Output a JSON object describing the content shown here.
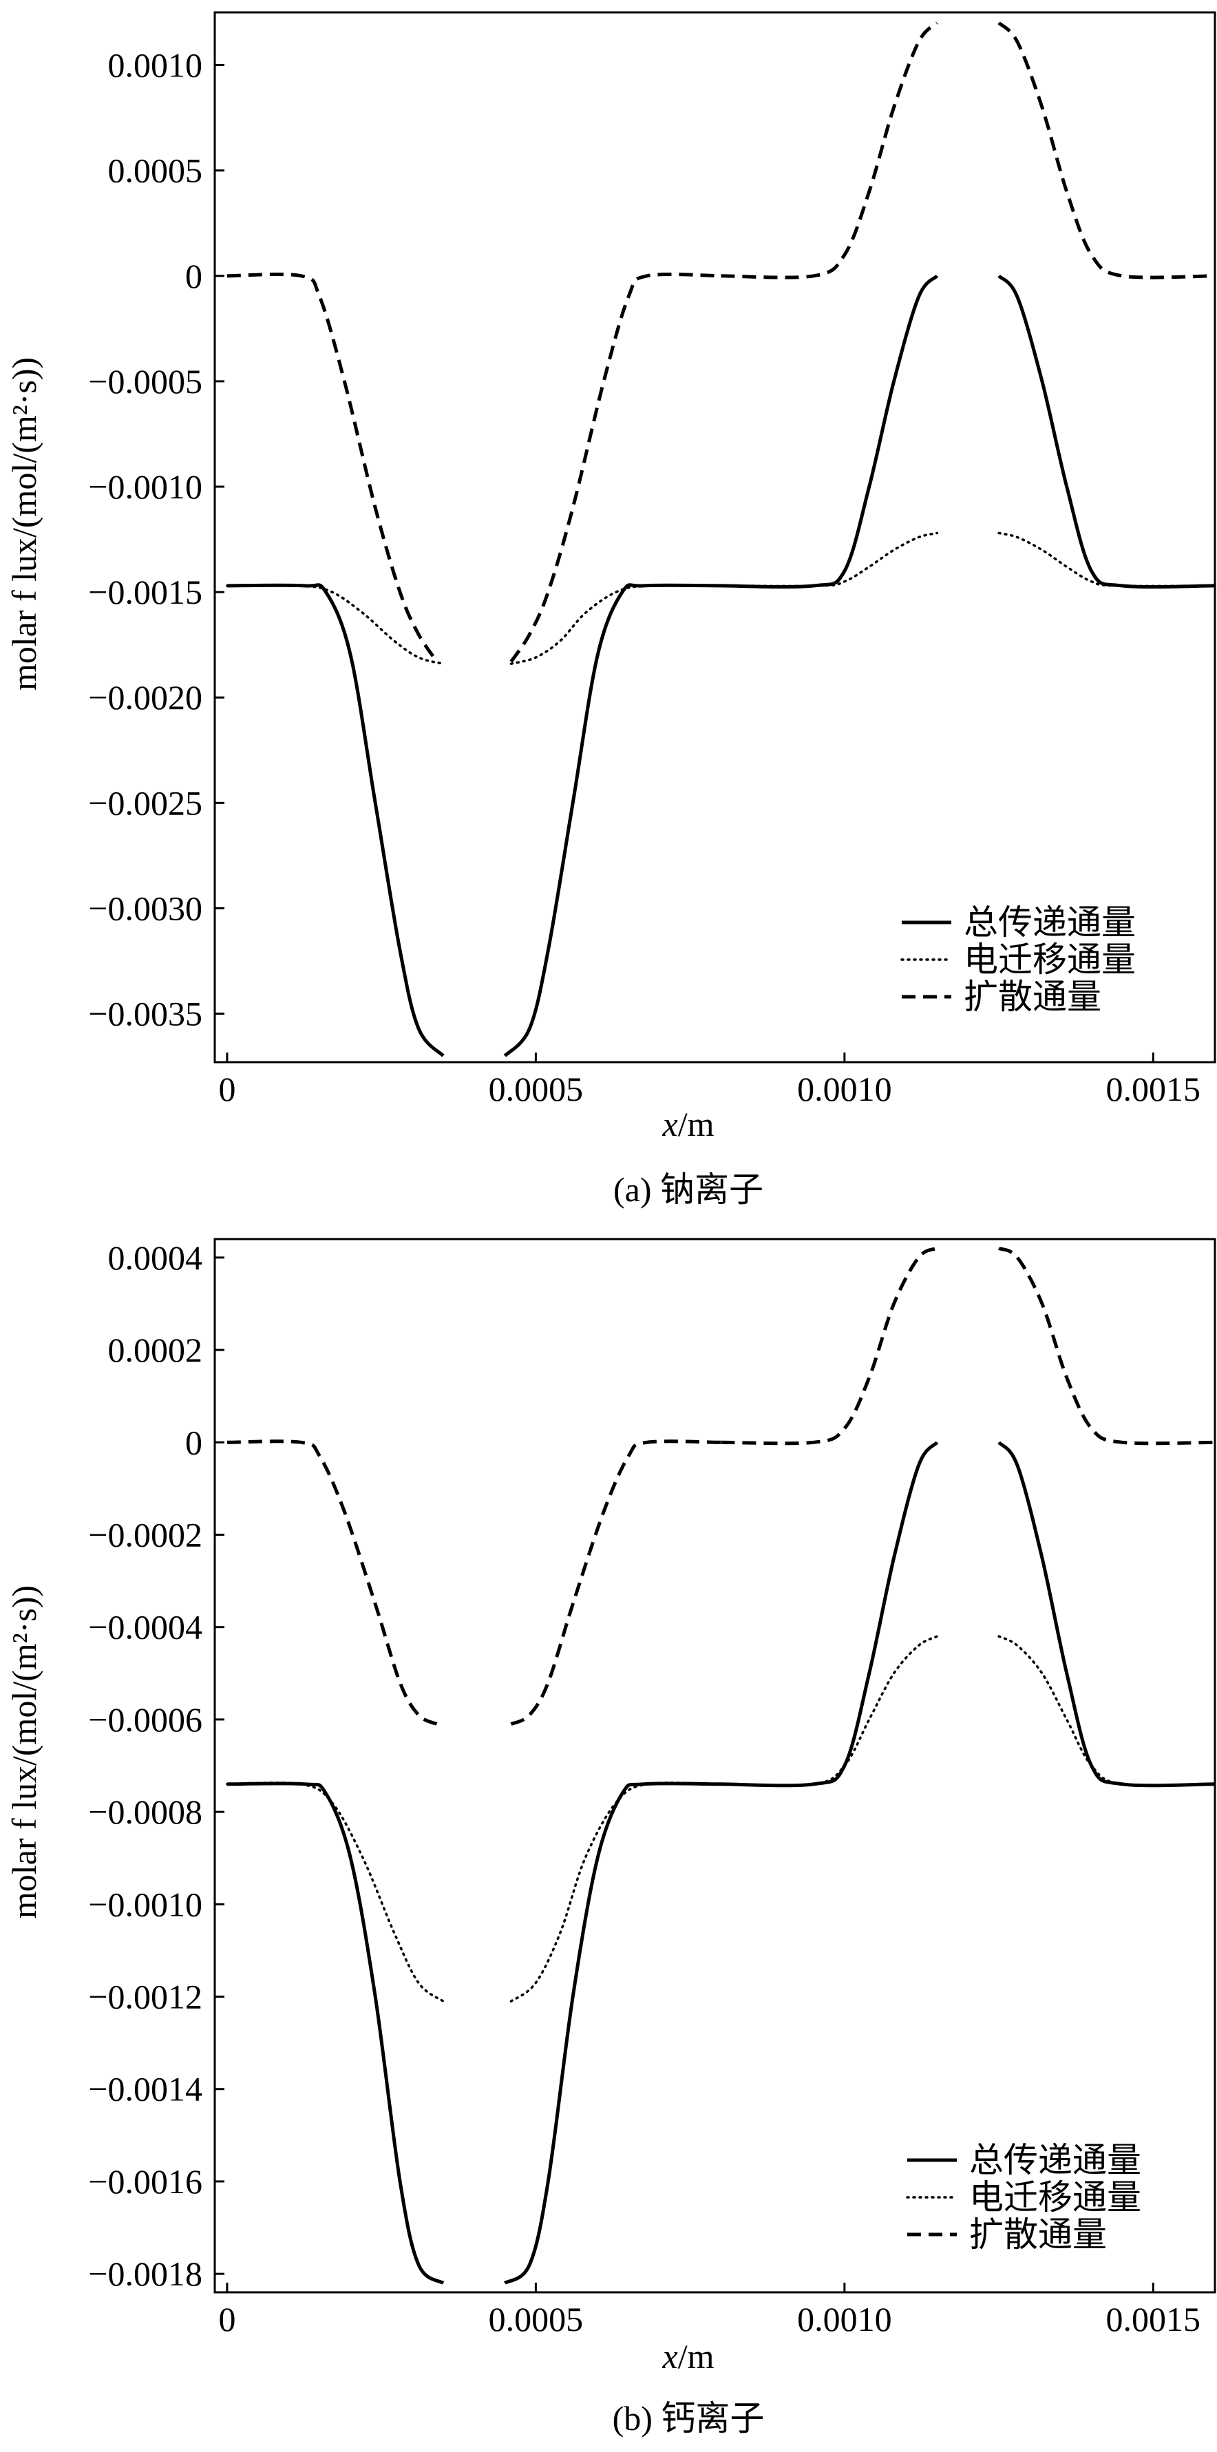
{
  "chart_data": [
    {
      "type": "line",
      "caption": "(a) 钠离子",
      "xlabel_var": "x",
      "xlabel_unit": "/m",
      "ylabel": "molar f lux/(mol/(m²·s))",
      "xlim": [
        -2e-05,
        0.0016
      ],
      "ylim": [
        -0.00373,
        0.00125
      ],
      "xticks": [
        {
          "value": 0,
          "label": "0"
        },
        {
          "value": 0.0005,
          "label": "0.0005"
        },
        {
          "value": 0.001,
          "label": "0.0010"
        },
        {
          "value": 0.0015,
          "label": "0.0015"
        }
      ],
      "yticks": [
        {
          "value": 0.001,
          "label": "0.0010"
        },
        {
          "value": 0.0005,
          "label": "0.0005"
        },
        {
          "value": 0,
          "label": "0"
        },
        {
          "value": -0.0005,
          "label": "−0.0005"
        },
        {
          "value": -0.001,
          "label": "−0.0010"
        },
        {
          "value": -0.0015,
          "label": "−0.0015"
        },
        {
          "value": -0.002,
          "label": "−0.0020"
        },
        {
          "value": -0.0025,
          "label": "−0.0025"
        },
        {
          "value": -0.003,
          "label": "−0.0030"
        },
        {
          "value": -0.0035,
          "label": "−0.0035"
        }
      ],
      "legend_position": "bottom-right",
      "series": [
        {
          "name": "总传递通量",
          "style": "solid",
          "baseline": -0.00147,
          "segments": [
            {
              "x": [
                0,
                0.000125,
                0.00016,
                0.0002,
                0.00024,
                0.00028,
                0.00031,
                0.00035
              ],
              "y": [
                -0.00147,
                -0.00147,
                -0.0015,
                -0.0018,
                -0.0025,
                -0.0032,
                -0.00357,
                -0.0037
              ]
            },
            {
              "x": [
                0.00045,
                0.00049,
                0.00052,
                0.00056,
                0.0006,
                0.00064,
                0.000675,
                0.0008
              ],
              "y": [
                -0.0037,
                -0.00357,
                -0.0032,
                -0.0025,
                -0.0018,
                -0.0015,
                -0.00147,
                -0.00147
              ]
            },
            {
              "x": [
                0.0008,
                0.00095,
                0.001,
                0.00104,
                0.00108,
                0.00112,
                0.00115
              ],
              "y": [
                -0.00147,
                -0.00147,
                -0.0014,
                -0.001,
                -0.0005,
                -0.0001,
                0
              ]
            },
            {
              "x": [
                0.00125,
                0.00128,
                0.00132,
                0.00136,
                0.0014,
                0.00145,
                0.0016
              ],
              "y": [
                0,
                -0.0001,
                -0.0005,
                -0.001,
                -0.0014,
                -0.00147,
                -0.00147
              ]
            }
          ]
        },
        {
          "name": "电迁移通量",
          "style": "dotted",
          "baseline": -0.00147,
          "segments": [
            {
              "x": [
                0,
                0.00012,
                0.00017,
                0.00022,
                0.00027,
                0.00031,
                0.00035
              ],
              "y": [
                -0.00147,
                -0.00147,
                -0.0015,
                -0.0016,
                -0.00173,
                -0.00181,
                -0.00184
              ]
            },
            {
              "x": [
                0.00046,
                0.0005,
                0.00054,
                0.00058,
                0.00063,
                0.00068,
                0.0008
              ],
              "y": [
                -0.00184,
                -0.00181,
                -0.00173,
                -0.0016,
                -0.0015,
                -0.00147,
                -0.00147
              ]
            },
            {
              "x": [
                0.0008,
                0.00096,
                0.001,
                0.00104,
                0.00108,
                0.00112,
                0.00115
              ],
              "y": [
                -0.00147,
                -0.00147,
                -0.00145,
                -0.00138,
                -0.0013,
                -0.00124,
                -0.00122
              ]
            },
            {
              "x": [
                0.00125,
                0.00128,
                0.00132,
                0.00136,
                0.0014,
                0.00144,
                0.0016
              ],
              "y": [
                -0.00122,
                -0.00124,
                -0.0013,
                -0.00138,
                -0.00145,
                -0.00147,
                -0.00147
              ]
            }
          ]
        },
        {
          "name": "扩散通量",
          "style": "dashed",
          "baseline": 0,
          "segments": [
            {
              "x": [
                0,
                0.00012,
                0.00015,
                0.00019,
                0.00024,
                0.00028,
                0.00031,
                0.00034
              ],
              "y": [
                0,
                0,
                -0.0001,
                -0.0005,
                -0.0011,
                -0.0015,
                -0.0017,
                -0.00183
              ]
            },
            {
              "x": [
                0.00046,
                0.00049,
                0.00052,
                0.00056,
                0.00061,
                0.00065,
                0.00068,
                0.0008
              ],
              "y": [
                -0.00183,
                -0.0017,
                -0.0015,
                -0.0011,
                -0.0005,
                -0.0001,
                0,
                0
              ]
            },
            {
              "x": [
                0.0008,
                0.00095,
                0.001,
                0.00104,
                0.00108,
                0.00112,
                0.00115
              ],
              "y": [
                0,
                0,
                0.0001,
                0.0004,
                0.0008,
                0.00111,
                0.0012
              ]
            },
            {
              "x": [
                0.00125,
                0.00128,
                0.00132,
                0.00136,
                0.0014,
                0.00145,
                0.0016
              ],
              "y": [
                0.0012,
                0.00111,
                0.0008,
                0.0004,
                0.0001,
                0,
                0
              ]
            }
          ]
        }
      ]
    },
    {
      "type": "line",
      "caption": "(b) 钙离子",
      "xlabel_var": "x",
      "xlabel_unit": "/m",
      "ylabel": "molar f lux/(mol/(m²·s))",
      "xlim": [
        -2e-05,
        0.0016
      ],
      "ylim": [
        -0.00184,
        0.00044
      ],
      "xticks": [
        {
          "value": 0,
          "label": "0"
        },
        {
          "value": 0.0005,
          "label": "0.0005"
        },
        {
          "value": 0.001,
          "label": "0.0010"
        },
        {
          "value": 0.0015,
          "label": "0.0015"
        }
      ],
      "yticks": [
        {
          "value": 0.0004,
          "label": "0.0004"
        },
        {
          "value": 0.0002,
          "label": "0.0002"
        },
        {
          "value": 0,
          "label": "0"
        },
        {
          "value": -0.0002,
          "label": "−0.0002"
        },
        {
          "value": -0.0004,
          "label": "−0.0004"
        },
        {
          "value": -0.0006,
          "label": "−0.0006"
        },
        {
          "value": -0.0008,
          "label": "−0.0008"
        },
        {
          "value": -0.001,
          "label": "−0.0010"
        },
        {
          "value": -0.0012,
          "label": "−0.0012"
        },
        {
          "value": -0.0014,
          "label": "−0.0014"
        },
        {
          "value": -0.0016,
          "label": "−0.0016"
        },
        {
          "value": -0.0018,
          "label": "−0.0018"
        }
      ],
      "legend_position": "bottom-right",
      "series": [
        {
          "name": "总传递通量",
          "style": "solid",
          "baseline": -0.00074,
          "segments": [
            {
              "x": [
                0,
                0.000125,
                0.00016,
                0.0002,
                0.00024,
                0.00028,
                0.00031,
                0.00035
              ],
              "y": [
                -0.00074,
                -0.00074,
                -0.00076,
                -0.0009,
                -0.0012,
                -0.0016,
                -0.00178,
                -0.00182
              ]
            },
            {
              "x": [
                0.00045,
                0.00049,
                0.00052,
                0.00056,
                0.0006,
                0.00064,
                0.000675,
                0.0008
              ],
              "y": [
                -0.00182,
                -0.00178,
                -0.0016,
                -0.0012,
                -0.0009,
                -0.00076,
                -0.00074,
                -0.00074
              ]
            },
            {
              "x": [
                0.0008,
                0.00095,
                0.001,
                0.00104,
                0.00108,
                0.00112,
                0.00115
              ],
              "y": [
                -0.00074,
                -0.00074,
                -0.0007,
                -0.0005,
                -0.00025,
                -5e-05,
                0
              ]
            },
            {
              "x": [
                0.00125,
                0.00128,
                0.00132,
                0.00136,
                0.0014,
                0.00145,
                0.0016
              ],
              "y": [
                0,
                -5e-05,
                -0.00025,
                -0.0005,
                -0.0007,
                -0.00074,
                -0.00074
              ]
            }
          ]
        },
        {
          "name": "电迁移通量",
          "style": "dotted",
          "baseline": -0.00074,
          "segments": [
            {
              "x": [
                0,
                0.00012,
                0.00017,
                0.00022,
                0.00027,
                0.00031,
                0.00035
              ],
              "y": [
                -0.00074,
                -0.00074,
                -0.00078,
                -0.0009,
                -0.00106,
                -0.00117,
                -0.00121
              ]
            },
            {
              "x": [
                0.00046,
                0.0005,
                0.00054,
                0.00058,
                0.00063,
                0.00068,
                0.0008
              ],
              "y": [
                -0.00121,
                -0.00117,
                -0.00106,
                -0.0009,
                -0.00078,
                -0.00074,
                -0.00074
              ]
            },
            {
              "x": [
                0.0008,
                0.00095,
                0.001,
                0.00104,
                0.00108,
                0.00112,
                0.00115
              ],
              "y": [
                -0.00074,
                -0.00074,
                -0.0007,
                -0.0006,
                -0.0005,
                -0.00044,
                -0.00042
              ]
            },
            {
              "x": [
                0.00125,
                0.00128,
                0.00132,
                0.00136,
                0.0014,
                0.00145,
                0.0016
              ],
              "y": [
                -0.00042,
                -0.00044,
                -0.0005,
                -0.0006,
                -0.0007,
                -0.00074,
                -0.00074
              ]
            }
          ]
        },
        {
          "name": "扩散通量",
          "style": "dashed",
          "baseline": 0,
          "segments": [
            {
              "x": [
                0,
                0.00012,
                0.00015,
                0.00019,
                0.00024,
                0.00028,
                0.00031,
                0.00034
              ],
              "y": [
                0,
                0,
                -3e-05,
                -0.00015,
                -0.00035,
                -0.00052,
                -0.00059,
                -0.00061
              ]
            },
            {
              "x": [
                0.00046,
                0.00049,
                0.00052,
                0.00056,
                0.00061,
                0.00065,
                0.00068,
                0.0008
              ],
              "y": [
                -0.00061,
                -0.00059,
                -0.00052,
                -0.00035,
                -0.00015,
                -3e-05,
                0,
                0
              ]
            },
            {
              "x": [
                0.0008,
                0.00095,
                0.001,
                0.00104,
                0.00108,
                0.00112,
                0.00115
              ],
              "y": [
                0,
                0,
                3e-05,
                0.00014,
                0.0003,
                0.0004,
                0.00042
              ]
            },
            {
              "x": [
                0.00125,
                0.00128,
                0.00132,
                0.00136,
                0.0014,
                0.00145,
                0.0016
              ],
              "y": [
                0.00042,
                0.0004,
                0.0003,
                0.00014,
                3e-05,
                0,
                0
              ]
            }
          ]
        }
      ]
    }
  ]
}
